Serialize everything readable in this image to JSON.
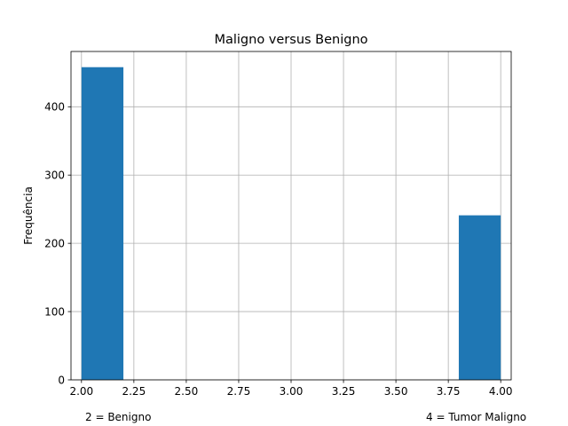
{
  "chart_data": {
    "type": "histogram",
    "title": "Maligno versus Benigno",
    "xlabel": "",
    "ylabel": "Frequência",
    "xlim": [
      1.95,
      4.05
    ],
    "ylim": [
      0,
      481
    ],
    "x_ticks": [
      "2.00",
      "2.25",
      "2.50",
      "2.75",
      "3.00",
      "3.25",
      "3.50",
      "3.75",
      "4.00"
    ],
    "y_ticks": [
      "0",
      "100",
      "200",
      "300",
      "400"
    ],
    "grid": true,
    "bar_color": "#1f77b4",
    "bins": [
      {
        "x0": 2.0,
        "x1": 2.2,
        "value": 458
      },
      {
        "x0": 2.2,
        "x1": 2.4,
        "value": 0
      },
      {
        "x0": 2.4,
        "x1": 2.6,
        "value": 0
      },
      {
        "x0": 2.6,
        "x1": 2.8,
        "value": 0
      },
      {
        "x0": 2.8,
        "x1": 3.0,
        "value": 0
      },
      {
        "x0": 3.0,
        "x1": 3.2,
        "value": 0
      },
      {
        "x0": 3.2,
        "x1": 3.4,
        "value": 0
      },
      {
        "x0": 3.4,
        "x1": 3.6,
        "value": 0
      },
      {
        "x0": 3.6,
        "x1": 3.8,
        "value": 0
      },
      {
        "x0": 3.8,
        "x1": 4.0,
        "value": 241
      }
    ],
    "annotations": [
      "2 = Benigno",
      "4 = Tumor Maligno"
    ]
  }
}
